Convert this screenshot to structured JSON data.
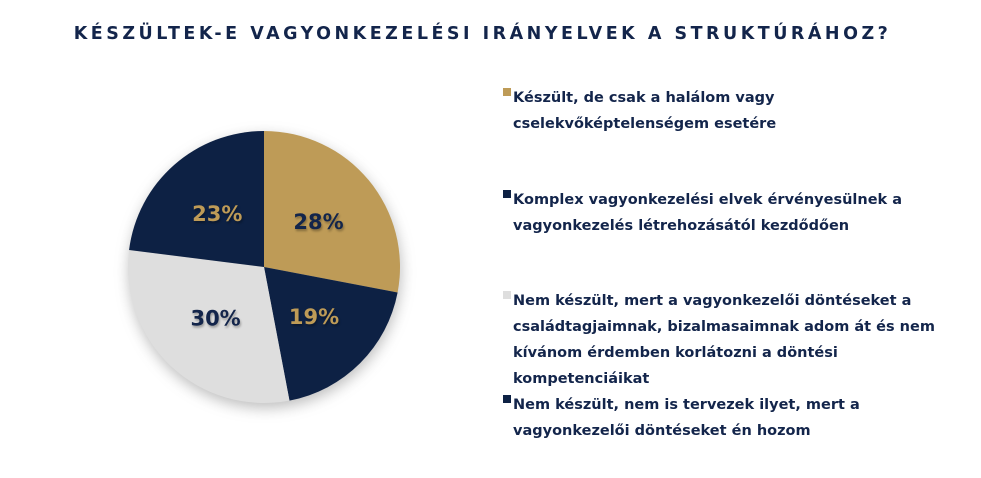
{
  "page": {
    "background": "#FFFFFF"
  },
  "title": "KÉSZÜLTEK-E VAGYONKEZELÉSI IRÁNYELVEK A STRUKTÚRÁHOZ?",
  "colors": {
    "navy": "#0D2144",
    "gold": "#BE9B57",
    "light_gray": "#DEDEDE",
    "title_text": "#13254B",
    "background": "#FFFFFF"
  },
  "chart_data": {
    "type": "pie",
    "title": "KÉSZÜLTEK-E VAGYONKEZELÉSI IRÁNYELVEK A STRUKTÚRÁHOZ?",
    "start_angle_deg": 0,
    "direction": "clockwise",
    "legend_position": "right",
    "total": 100,
    "slices": [
      {
        "value": 28,
        "display": "28%",
        "color": "#BE9B57",
        "value_label_color": "#13254B",
        "legend_text": "Készült, de csak a halálom vagy\ncselekvőképtelenségem esetére"
      },
      {
        "value": 19,
        "display": "19%",
        "color": "#0D2144",
        "value_label_color": "#BE9B57",
        "legend_text": "Komplex vagyonkezelési elvek érvényesülnek a\nvagyonkezelés létrehozásától kezdődően"
      },
      {
        "value": 30,
        "display": "30%",
        "color": "#DEDEDE",
        "value_label_color": "#13254B",
        "legend_text": "Nem készült, mert a vagyonkezelői döntéseket a\ncsaládtagjaimnak, bizalmasaimnak adom át és nem\nkívánom érdemben korlátozni a döntési\nkompetenciáikat"
      },
      {
        "value": 23,
        "display": "23%",
        "color": "#0D2144",
        "value_label_color": "#BE9B57",
        "legend_text": "Nem készült, nem is tervezek ilyet, mert a\nvagyonkezelői döntéseket én hozom"
      }
    ]
  }
}
